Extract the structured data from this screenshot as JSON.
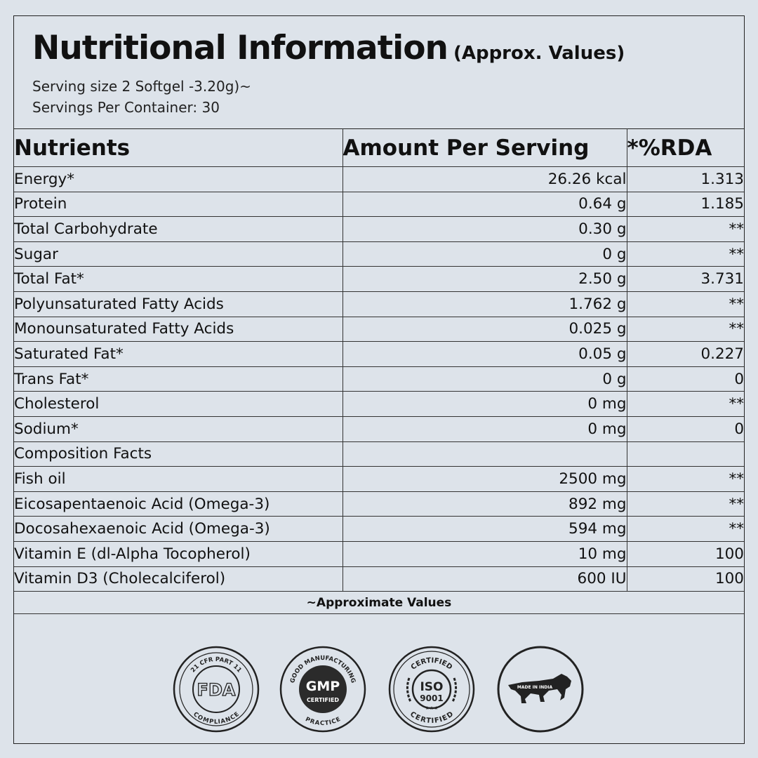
{
  "header": {
    "title": "Nutritional Information",
    "subtitle": "(Approx. Values)",
    "serving_size": "Serving size 2 Softgel -3.20g)~",
    "servings_per_container": "Servings Per Container: 30"
  },
  "table": {
    "columns": [
      "Nutrients",
      "Amount Per Serving",
      "*%RDA"
    ],
    "rows": [
      {
        "nutrient": "Energy*",
        "amount": "26.26 kcal",
        "rda": "1.313"
      },
      {
        "nutrient": "Protein",
        "amount": "0.64 g",
        "rda": "1.185"
      },
      {
        "nutrient": "Total Carbohydrate",
        "amount": "0.30 g",
        "rda": "**"
      },
      {
        "nutrient": "Sugar",
        "amount": "0 g",
        "rda": "**"
      },
      {
        "nutrient": "Total Fat*",
        "amount": "2.50 g",
        "rda": "3.731"
      },
      {
        "nutrient": "Polyunsaturated Fatty Acids",
        "amount": "1.762 g",
        "rda": "**"
      },
      {
        "nutrient": "Monounsaturated Fatty Acids",
        "amount": "0.025 g",
        "rda": "**"
      },
      {
        "nutrient": "Saturated Fat*",
        "amount": "0.05 g",
        "rda": "0.227"
      },
      {
        "nutrient": "Trans Fat*",
        "amount": "0 g",
        "rda": "0"
      },
      {
        "nutrient": "Cholesterol",
        "amount": "0 mg",
        "rda": "**"
      },
      {
        "nutrient": "Sodium*",
        "amount": "0 mg",
        "rda": "0"
      },
      {
        "nutrient": "Composition Facts",
        "amount": "",
        "rda": ""
      },
      {
        "nutrient": "Fish oil",
        "amount": "2500 mg",
        "rda": "**"
      },
      {
        "nutrient": "Eicosapentaenoic Acid (Omega-3)",
        "amount": "892 mg",
        "rda": "**"
      },
      {
        "nutrient": "Docosahexaenoic Acid (Omega-3)",
        "amount": "594 mg",
        "rda": "**"
      },
      {
        "nutrient": "Vitamin E (dl-Alpha Tocopherol)",
        "amount": "10 mg",
        "rda": "100"
      },
      {
        "nutrient": "Vitamin D3 (Cholecalciferol)",
        "amount": "600 IU",
        "rda": "100"
      }
    ],
    "footnote": "~Approximate Values"
  },
  "badges": [
    {
      "icon": "fda-badge-icon",
      "top_text": "21 CFR PART 11",
      "center_text": "FDA",
      "bottom_text": "COMPLIANCE"
    },
    {
      "icon": "gmp-badge-icon",
      "top_text": "GOOD MANUFACTURING",
      "center_text": "GMP",
      "center_sub": "CERTIFIED",
      "bottom_text": "PRACTICE"
    },
    {
      "icon": "iso-badge-icon",
      "top_text": "CERTIFIED",
      "center_text": "ISO",
      "center_sub": "9001",
      "bottom_text": "CERTIFIED"
    },
    {
      "icon": "made-in-india-badge-icon",
      "center_text": "MADE IN INDIA"
    }
  ],
  "colors": {
    "background": "#dde3ea",
    "ink": "#111111",
    "badge_dark": "#2b2b2b"
  }
}
